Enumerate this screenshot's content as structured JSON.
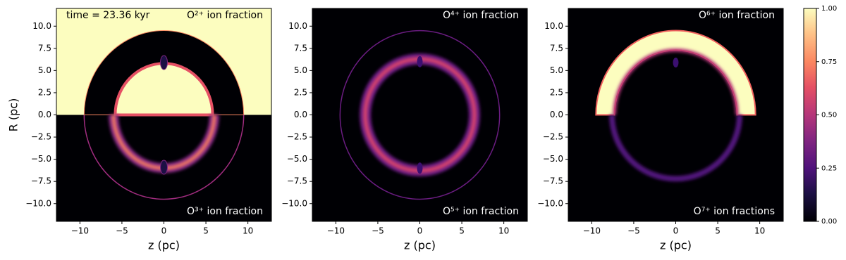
{
  "chart_data": [
    {
      "type": "image",
      "annotations": [
        "time = 23.36 kyr",
        "O²⁺ ion fraction",
        "O³⁺ ion fraction"
      ],
      "xlabel": "z (pc)",
      "ylabel": "R (pc)",
      "xlim": [
        -12.8,
        12.8
      ],
      "ylim": [
        -12,
        12
      ],
      "xticks": [
        {
          "value": -10,
          "label": "−10"
        },
        {
          "value": -5,
          "label": "−5"
        },
        0,
        5,
        10
      ],
      "yticks": [
        {
          "value": -10,
          "label": "−10.0"
        },
        {
          "value": -7.5,
          "label": "−7.5"
        },
        {
          "value": -5,
          "label": "−5.0"
        },
        {
          "value": -2.5,
          "label": "−2.5"
        },
        {
          "value": 0,
          "label": "0.0"
        },
        {
          "value": 2.5,
          "label": "2.5"
        },
        {
          "value": 5,
          "label": "5.0"
        },
        {
          "value": 7.5,
          "label": "7.5"
        },
        {
          "value": 10,
          "label": "10.0"
        }
      ]
    },
    {
      "type": "image",
      "annotations": [
        "O⁴⁺ ion fraction",
        "O⁵⁺ ion fraction"
      ],
      "xlabel": "z (pc)",
      "xlim": [
        -12.8,
        12.8
      ],
      "ylim": [
        -12,
        12
      ],
      "xticks": [
        {
          "value": -10,
          "label": "−10"
        },
        {
          "value": -5,
          "label": "−5"
        },
        0,
        5,
        10
      ],
      "yticks": [
        {
          "value": -10,
          "label": "−10.0"
        },
        {
          "value": -7.5,
          "label": "−7.5"
        },
        {
          "value": -5,
          "label": "−5.0"
        },
        {
          "value": -2.5,
          "label": "−2.5"
        },
        {
          "value": 0,
          "label": "0.0"
        },
        {
          "value": 2.5,
          "label": "2.5"
        },
        {
          "value": 5,
          "label": "5.0"
        },
        {
          "value": 7.5,
          "label": "7.5"
        },
        {
          "value": 10,
          "label": "10.0"
        }
      ]
    },
    {
      "type": "image",
      "annotations": [
        "O⁶⁺ ion fraction",
        "O⁷⁺ ion fractions"
      ],
      "xlabel": "z (pc)",
      "xlim": [
        -12.8,
        12.8
      ],
      "ylim": [
        -12,
        12
      ],
      "xticks": [
        {
          "value": -10,
          "label": "−10"
        },
        {
          "value": -5,
          "label": "−5"
        },
        0,
        5,
        10
      ],
      "yticks": [
        {
          "value": -10,
          "label": "−10.0"
        },
        {
          "value": -7.5,
          "label": "−7.5"
        },
        {
          "value": -5,
          "label": "−5.0"
        },
        {
          "value": -2.5,
          "label": "−2.5"
        },
        {
          "value": 0,
          "label": "0.0"
        },
        {
          "value": 2.5,
          "label": "2.5"
        },
        {
          "value": 5,
          "label": "5.0"
        },
        {
          "value": 7.5,
          "label": "7.5"
        },
        {
          "value": 10,
          "label": "10.0"
        }
      ]
    },
    {
      "type": "colorbar",
      "colormap": "magma",
      "ylim": [
        0,
        1
      ],
      "yticks": [
        {
          "value": 0,
          "label": "0.00"
        },
        {
          "value": 0.25,
          "label": "0.25"
        },
        {
          "value": 0.5,
          "label": "0.50"
        },
        {
          "value": 0.75,
          "label": "0.75"
        },
        {
          "value": 1,
          "label": "1.00"
        }
      ]
    }
  ]
}
